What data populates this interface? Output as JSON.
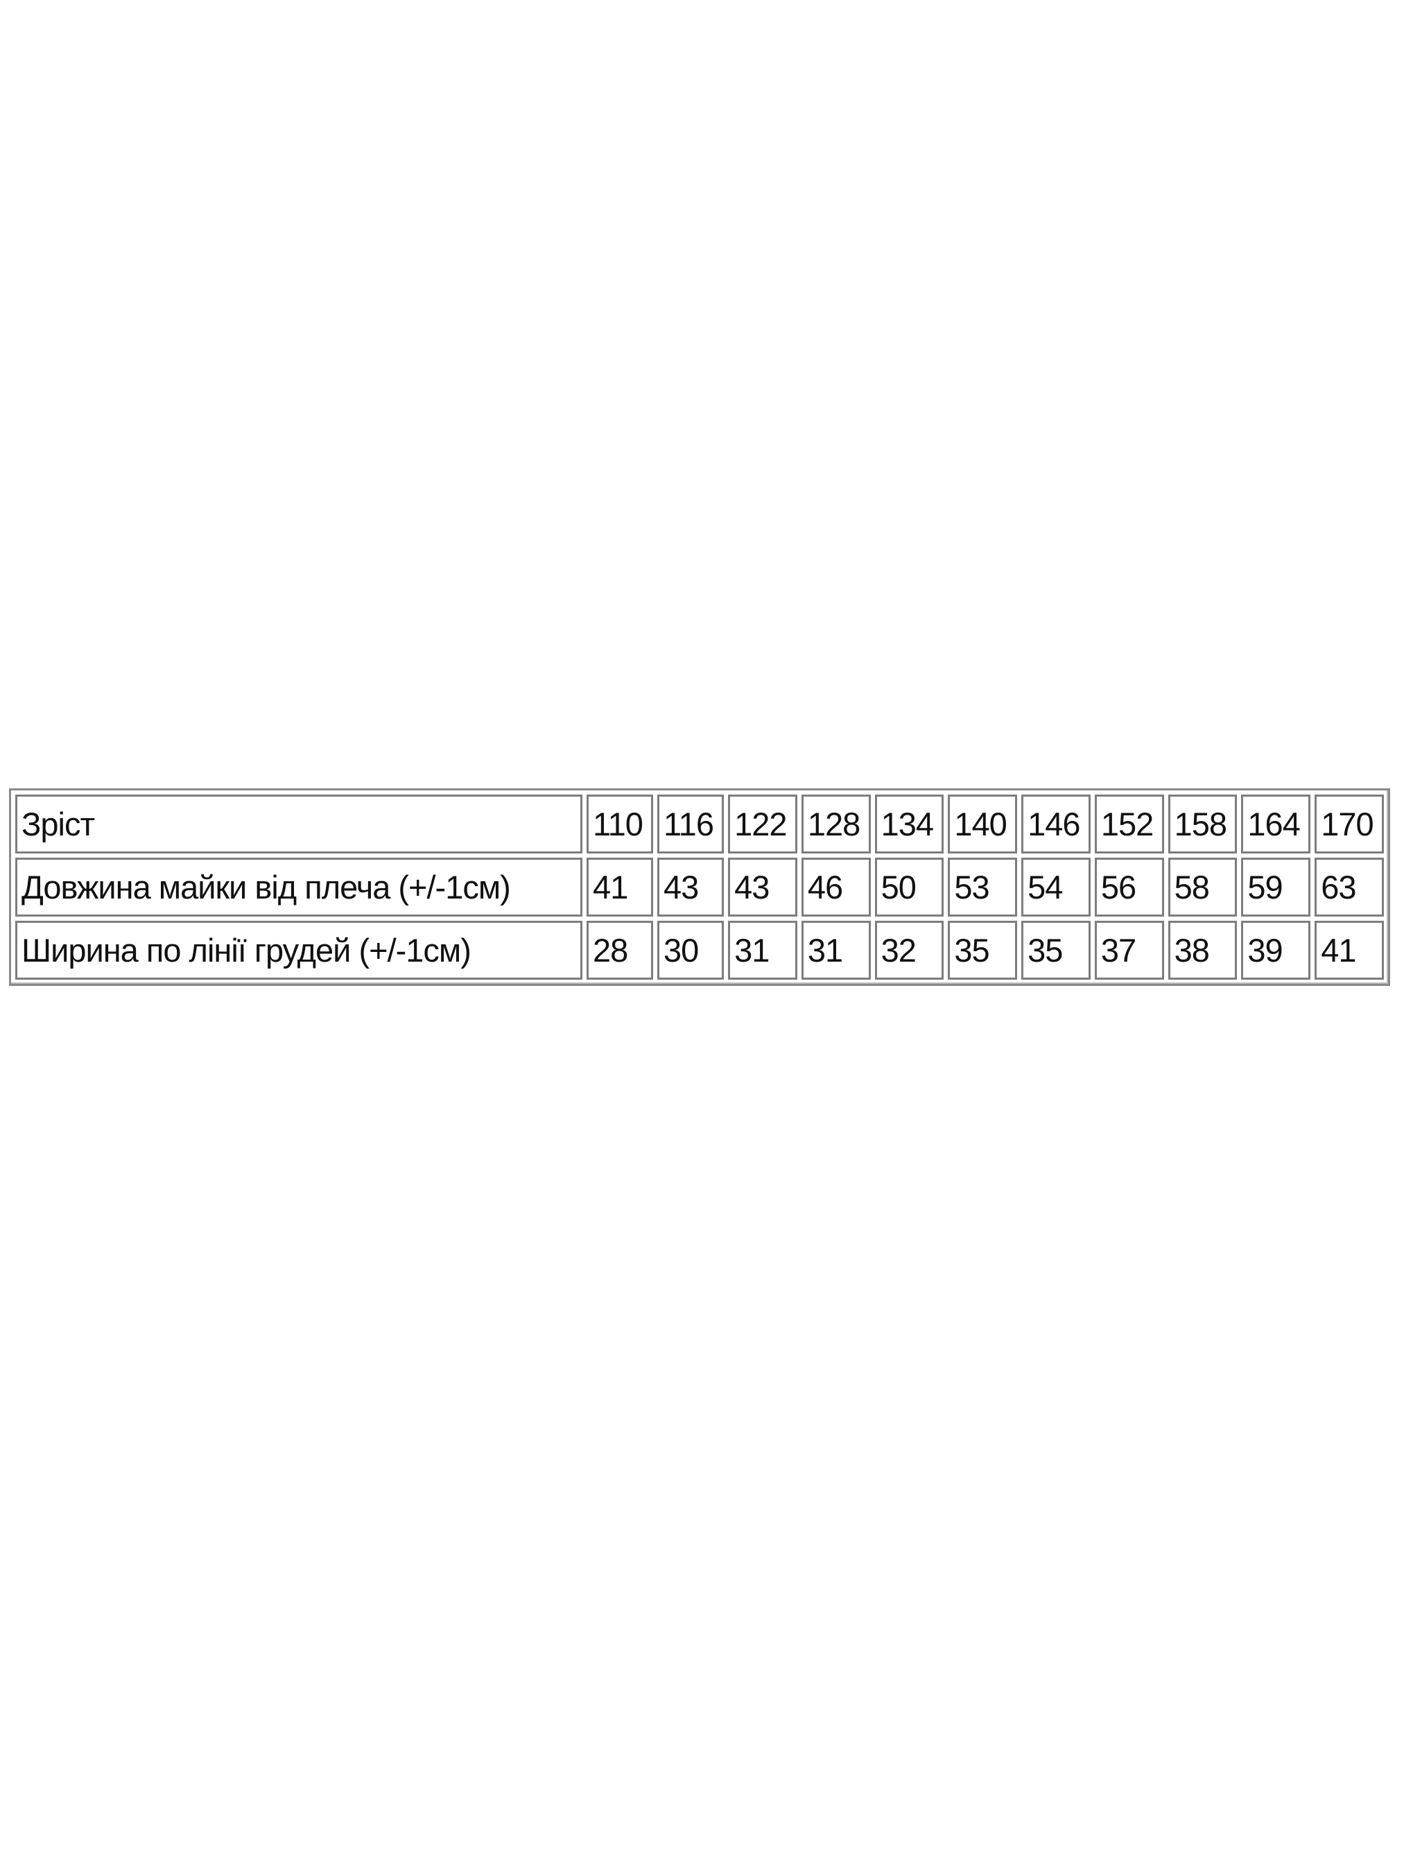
{
  "table": {
    "rows": [
      {
        "label": "Зріст",
        "values": [
          "110",
          "116",
          "122",
          "128",
          "134",
          "140",
          "146",
          "152",
          "158",
          "164",
          "170"
        ]
      },
      {
        "label": "Довжина майки від плеча (+/-1см)",
        "values": [
          "41",
          "43",
          "43",
          "46",
          "50",
          "53",
          "54",
          "56",
          "58",
          "59",
          "63"
        ]
      },
      {
        "label": "Ширина по лінії грудей (+/-1см)",
        "values": [
          "28",
          "30",
          "31",
          "31",
          "32",
          "35",
          "35",
          "37",
          "38",
          "39",
          "41"
        ]
      }
    ]
  }
}
